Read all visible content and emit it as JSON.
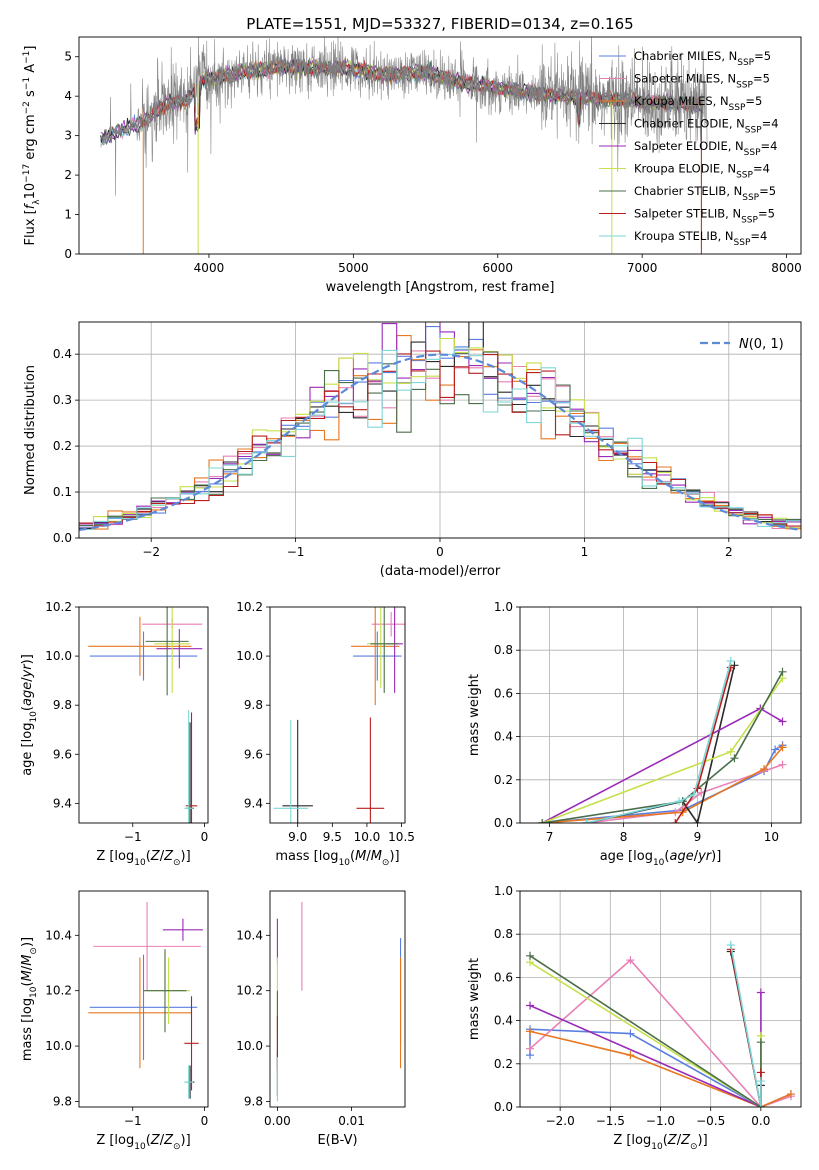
{
  "figure": {
    "title": "PLATE=1551, MJD=53327, FIBERID=0134, z=0.165"
  },
  "chart_data": [
    {
      "id": "spectrum",
      "type": "line",
      "xlabel": "wavelength [Angstrom, rest frame]",
      "ylabel": "Flux [f_λ10^-17 erg cm^-2 s^-1 A^-1]",
      "xlim": [
        3100,
        8100
      ],
      "ylim": [
        0,
        5.5
      ],
      "xticks": [
        4000,
        5000,
        6000,
        7000,
        8000
      ],
      "yticks": [
        0,
        1,
        2,
        3,
        4,
        5
      ],
      "grid": false,
      "legend_position": "top-right",
      "series": [
        {
          "name": "Chabrier MILES, N_SSP=5",
          "label": "Chabrier MILES, N",
          "sub": "SSP",
          "tail": "=5",
          "color": "#5b7fe0"
        },
        {
          "name": "Salpeter MILES, N_SSP=5",
          "label": "Salpeter MILES, N",
          "sub": "SSP",
          "tail": "=5",
          "color": "#e87fb5"
        },
        {
          "name": "Kroupa MILES, N_SSP=5",
          "label": "Kroupa MILES, N",
          "sub": "SSP",
          "tail": "=5",
          "color": "#e87720"
        },
        {
          "name": "Chabrier ELODIE, N_SSP=4",
          "label": "Chabrier ELODIE, N",
          "sub": "SSP",
          "tail": "=4",
          "color": "#2a2a2a"
        },
        {
          "name": "Salpeter ELODIE, N_SSP=4",
          "label": "Salpeter ELODIE, N",
          "sub": "SSP",
          "tail": "=4",
          "color": "#9a2ab8"
        },
        {
          "name": "Kroupa ELODIE, N_SSP=4",
          "label": "Kroupa ELODIE, N",
          "sub": "SSP",
          "tail": "=4",
          "color": "#c5e04a"
        },
        {
          "name": "Chabrier STELIB, N_SSP=5",
          "label": "Chabrier STELIB, N",
          "sub": "SSP",
          "tail": "=5",
          "color": "#4a6e4a"
        },
        {
          "name": "Salpeter STELIB, N_SSP=5",
          "label": "Salpeter STELIB, N",
          "sub": "SSP",
          "tail": "=5",
          "color": "#b81e1e"
        },
        {
          "name": "Kroupa STELIB, N_SSP=4",
          "label": "Kroupa STELIB, N",
          "sub": "SSP",
          "tail": "=4",
          "color": "#7fd6d6"
        }
      ],
      "data_color": "#808080",
      "continuum": {
        "x": [
          3250,
          3400,
          3550,
          3700,
          3850,
          3950,
          4100,
          4300,
          4500,
          4800,
          5000,
          5200,
          5500,
          5800,
          6000,
          6300,
          6600,
          6900,
          7100,
          7300,
          7400
        ],
        "y": [
          2.9,
          3.15,
          3.35,
          3.8,
          3.9,
          4.4,
          4.5,
          4.65,
          4.75,
          4.7,
          4.7,
          4.55,
          4.6,
          4.3,
          4.2,
          4.05,
          3.95,
          3.9,
          3.85,
          3.8,
          3.75
        ]
      }
    },
    {
      "id": "residuals",
      "type": "line",
      "xlabel": "(data-model)/error",
      "ylabel": "Normed distribution",
      "xlim": [
        -2.5,
        2.5
      ],
      "ylim": [
        0,
        0.47
      ],
      "xticks": [
        -2,
        -1,
        0,
        1,
        2
      ],
      "yticks": [
        0.0,
        0.1,
        0.2,
        0.3,
        0.4
      ],
      "grid": true,
      "legend": "N(0, 1)",
      "legend_position": "top-right",
      "gaussian": {
        "mean": 0,
        "sigma": 1,
        "color": "#5b8ad8"
      },
      "histogram": {
        "bin_width": 0.1,
        "range": [
          -2.5,
          2.5
        ]
      }
    },
    {
      "id": "age-vs-Z",
      "type": "scatter",
      "xlabel": "Z [log10(Z/Z⊙)]",
      "ylabel": "age  [log10(age/yr)]",
      "xlim": [
        -1.75,
        0.05
      ],
      "ylim": [
        9.32,
        10.2
      ],
      "xticks": [
        -1,
        0
      ],
      "yticks": [
        9.4,
        9.6,
        9.8,
        10.0,
        10.2
      ],
      "points": [
        {
          "x": -0.85,
          "y": 10.0,
          "xerr": 0.75,
          "yerr": 0.1,
          "s": 0
        },
        {
          "x": -0.45,
          "y": 10.13,
          "xerr": 0.42,
          "yerr": 0.02,
          "s": 1
        },
        {
          "x": -0.9,
          "y": 10.04,
          "xerr": 0.72,
          "yerr": 0.12,
          "s": 2
        },
        {
          "x": -0.2,
          "y": 9.38,
          "xerr": 0.05,
          "yerr": 0.35,
          "s": 3
        },
        {
          "x": -0.35,
          "y": 10.03,
          "xerr": 0.32,
          "yerr": 0.08,
          "s": 4
        },
        {
          "x": -0.45,
          "y": 10.05,
          "xerr": 0.25,
          "yerr": 0.2,
          "s": 5
        },
        {
          "x": -0.52,
          "y": 10.06,
          "xerr": 0.3,
          "yerr": 0.22,
          "s": 6
        },
        {
          "x": -0.18,
          "y": 9.39,
          "xerr": 0.08,
          "yerr": 0.38,
          "s": 7
        },
        {
          "x": -0.22,
          "y": 9.38,
          "xerr": 0.06,
          "yerr": 0.4,
          "s": 8
        }
      ]
    },
    {
      "id": "age-vs-mass",
      "type": "scatter",
      "xlabel": "mass [log10(M/M⊙)]",
      "ylabel": "",
      "xlim": [
        8.6,
        10.55
      ],
      "ylim": [
        9.32,
        10.2
      ],
      "xticks": [
        9.0,
        9.5,
        10.0,
        10.5
      ],
      "yticks": [
        9.4,
        9.6,
        9.8,
        10.0,
        10.2
      ],
      "points": [
        {
          "x": 10.15,
          "y": 10.0,
          "xerr": 0.35,
          "yerr": 0.1,
          "s": 0
        },
        {
          "x": 10.35,
          "y": 10.13,
          "xerr": 0.28,
          "yerr": 0.05,
          "s": 1
        },
        {
          "x": 10.12,
          "y": 10.04,
          "xerr": 0.35,
          "yerr": 0.24,
          "s": 2
        },
        {
          "x": 9.0,
          "y": 9.39,
          "xerr": 0.22,
          "yerr": 0.35,
          "s": 3
        },
        {
          "x": 10.4,
          "y": 10.05,
          "xerr": 0.12,
          "yerr": 0.2,
          "s": 4
        },
        {
          "x": 10.2,
          "y": 10.05,
          "xerr": 0.2,
          "yerr": 0.18,
          "s": 5
        },
        {
          "x": 10.25,
          "y": 10.05,
          "xerr": 0.2,
          "yerr": 0.2,
          "s": 6
        },
        {
          "x": 10.05,
          "y": 9.38,
          "xerr": 0.2,
          "yerr": 0.37,
          "s": 7
        },
        {
          "x": 8.9,
          "y": 9.38,
          "xerr": 0.25,
          "yerr": 0.36,
          "s": 8
        }
      ]
    },
    {
      "id": "massweight-vs-age",
      "type": "line",
      "xlabel": "age  [log10(age/yr)]",
      "ylabel": "mass weight",
      "xlim": [
        6.6,
        10.4
      ],
      "ylim": [
        0,
        1.0
      ],
      "xticks": [
        7,
        8,
        9,
        10
      ],
      "yticks": [
        0.0,
        0.2,
        0.4,
        0.6,
        0.8,
        1.0
      ],
      "grid": true,
      "series": [
        {
          "s": 0,
          "x": [
            6.9,
            8.8,
            9.9,
            10.05,
            10.15
          ],
          "y": [
            0.0,
            0.06,
            0.24,
            0.34,
            0.36
          ]
        },
        {
          "s": 1,
          "x": [
            7.5,
            8.7,
            9.05,
            10.15
          ],
          "y": [
            0.0,
            0.05,
            0.14,
            0.27
          ]
        },
        {
          "s": 2,
          "x": [
            6.9,
            8.8,
            9.9,
            10.15
          ],
          "y": [
            0.0,
            0.05,
            0.25,
            0.35
          ]
        },
        {
          "s": 3,
          "x": [
            7.5,
            8.8,
            9.0,
            9.5
          ],
          "y": [
            0.0,
            0.1,
            0.0,
            0.73
          ]
        },
        {
          "s": 4,
          "x": [
            6.9,
            9.85,
            10.15
          ],
          "y": [
            0.0,
            0.53,
            0.47
          ]
        },
        {
          "s": 5,
          "x": [
            6.9,
            9.45,
            10.15
          ],
          "y": [
            0.0,
            0.33,
            0.67
          ]
        },
        {
          "s": 6,
          "x": [
            6.9,
            8.8,
            9.5,
            10.15
          ],
          "y": [
            0.0,
            0.1,
            0.3,
            0.7
          ]
        },
        {
          "s": 7,
          "x": [
            8.7,
            9.0,
            9.45
          ],
          "y": [
            0.0,
            0.16,
            0.72
          ]
        },
        {
          "s": 8,
          "x": [
            7.5,
            8.75,
            8.95,
            9.45
          ],
          "y": [
            0.0,
            0.1,
            0.13,
            0.75
          ]
        }
      ]
    },
    {
      "id": "mass-vs-Z",
      "type": "scatter",
      "xlabel": "Z [log10(Z/Z⊙)]",
      "ylabel": "mass [log10(M/M⊙)]",
      "xlim": [
        -1.75,
        0.05
      ],
      "ylim": [
        9.78,
        10.56
      ],
      "xticks": [
        -1,
        0
      ],
      "yticks": [
        9.8,
        10.0,
        10.2,
        10.4
      ],
      "points": [
        {
          "x": -0.85,
          "y": 10.14,
          "xerr": 0.75,
          "yerr": 0.19,
          "s": 0
        },
        {
          "x": -0.8,
          "y": 10.36,
          "xerr": 0.75,
          "yerr": 0.16,
          "s": 1
        },
        {
          "x": -0.9,
          "y": 10.12,
          "xerr": 0.72,
          "yerr": 0.2,
          "s": 2
        },
        {
          "x": -0.2,
          "y": 9.87,
          "xerr": 0.06,
          "yerr": 0.06,
          "s": 3
        },
        {
          "x": -0.3,
          "y": 10.42,
          "xerr": 0.28,
          "yerr": 0.04,
          "s": 4
        },
        {
          "x": -0.5,
          "y": 10.2,
          "xerr": 0.3,
          "yerr": 0.12,
          "s": 5
        },
        {
          "x": -0.55,
          "y": 10.2,
          "xerr": 0.3,
          "yerr": 0.15,
          "s": 6
        },
        {
          "x": -0.18,
          "y": 10.01,
          "xerr": 0.1,
          "yerr": 0.17,
          "s": 7
        },
        {
          "x": -0.22,
          "y": 9.87,
          "xerr": 0.06,
          "yerr": 0.06,
          "s": 8
        }
      ]
    },
    {
      "id": "mass-vs-EBV",
      "type": "scatter",
      "xlabel": "E(B-V)",
      "ylabel": "",
      "xlim": [
        -0.001,
        0.0172
      ],
      "ylim": [
        9.78,
        10.56
      ],
      "xticks": [
        0.0,
        0.01
      ],
      "xticklabels": [
        "0.00",
        "0.01"
      ],
      "yticks": [
        9.8,
        10.0,
        10.2,
        10.4
      ],
      "points": [
        {
          "x": 0.0166,
          "y": 10.2,
          "yerr": 0.19,
          "s": 0
        },
        {
          "x": 0.0033,
          "y": 10.36,
          "yerr": 0.16,
          "s": 1
        },
        {
          "x": 0.0166,
          "y": 10.12,
          "yerr": 0.2,
          "s": 2
        },
        {
          "x": 0.0,
          "y": 9.9,
          "yerr": 0.08,
          "s": 3
        },
        {
          "x": 0.0,
          "y": 10.38,
          "yerr": 0.08,
          "s": 4
        },
        {
          "x": 0.0,
          "y": 10.18,
          "yerr": 0.14,
          "s": 5
        },
        {
          "x": 0.0,
          "y": 10.06,
          "yerr": 0.14,
          "s": 6
        },
        {
          "x": 0.0,
          "y": 10.01,
          "yerr": 0.1,
          "s": 7
        },
        {
          "x": 0.0,
          "y": 9.88,
          "yerr": 0.08,
          "s": 8
        }
      ]
    },
    {
      "id": "massweight-vs-Z",
      "type": "line",
      "xlabel": "Z [log10(Z/Z⊙)]",
      "ylabel": "mass weight",
      "xlim": [
        -2.4,
        0.4
      ],
      "ylim": [
        0,
        1.0
      ],
      "xticks": [
        -2.0,
        -1.5,
        -1.0,
        -0.5,
        0.0
      ],
      "yticks": [
        0.0,
        0.2,
        0.4,
        0.6,
        0.8,
        1.0
      ],
      "grid": true,
      "series": [
        {
          "s": 0,
          "x": [
            -2.3,
            -2.3,
            -1.3,
            0.0,
            0.3
          ],
          "y": [
            0.24,
            0.36,
            0.34,
            0.0,
            0.06
          ]
        },
        {
          "s": 1,
          "x": [
            -2.3,
            -1.3,
            0.0,
            0.3
          ],
          "y": [
            0.27,
            0.68,
            0.0,
            0.05
          ]
        },
        {
          "s": 2,
          "x": [
            -2.3,
            -1.3,
            0.0,
            0.3
          ],
          "y": [
            0.35,
            0.24,
            0.0,
            0.06
          ]
        },
        {
          "s": 3,
          "x": [
            -0.3,
            0.0,
            0.0
          ],
          "y": [
            0.72,
            0.0,
            0.1
          ]
        },
        {
          "s": 4,
          "x": [
            -2.3,
            0.0,
            0.0
          ],
          "y": [
            0.47,
            0.0,
            0.53
          ]
        },
        {
          "s": 5,
          "x": [
            -2.3,
            0.0,
            0.0
          ],
          "y": [
            0.67,
            0.0,
            0.33
          ]
        },
        {
          "s": 6,
          "x": [
            -2.3,
            0.0,
            0.0
          ],
          "y": [
            0.7,
            0.0,
            0.3
          ]
        },
        {
          "s": 7,
          "x": [
            -0.3,
            0.0,
            0.0
          ],
          "y": [
            0.73,
            0.0,
            0.16
          ]
        },
        {
          "s": 8,
          "x": [
            -0.3,
            0.0,
            0.0
          ],
          "y": [
            0.75,
            0.0,
            0.12
          ]
        }
      ]
    }
  ]
}
